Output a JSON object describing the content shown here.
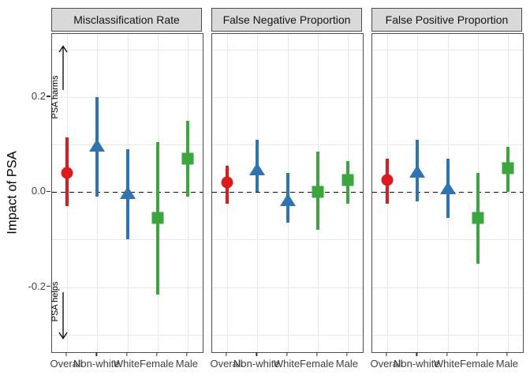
{
  "chart_data": {
    "type": "pointrange",
    "ylabel": "Impact of PSA",
    "y_ticks": [
      0.2,
      0.0,
      -0.2
    ],
    "y_tick_labels": [
      "0.2",
      "0.0",
      "-0.2"
    ],
    "ylim": [
      -0.337,
      0.333
    ],
    "gridlines_y": [
      0.3,
      0.2,
      0.1,
      0.0,
      -0.1,
      -0.2,
      -0.3
    ],
    "zero_line": {
      "value": 0.0,
      "style": "dashed",
      "color": "#111111"
    },
    "grid": true,
    "legend_position": "none",
    "categories": [
      "Overall",
      "Non-white",
      "White",
      "Female",
      "Male"
    ],
    "series_style": [
      {
        "category": "Overall",
        "shape": "circle",
        "color": "#e01a1c"
      },
      {
        "category": "Non-white",
        "shape": "triangle",
        "color": "#2e73b3"
      },
      {
        "category": "White",
        "shape": "triangle",
        "color": "#2e73b3"
      },
      {
        "category": "Female",
        "shape": "square",
        "color": "#3aa73c"
      },
      {
        "category": "Male",
        "shape": "square",
        "color": "#3aa73c"
      }
    ],
    "panels": [
      {
        "title": "Misclassification Rate",
        "points": [
          {
            "category": "Overall",
            "estimate": 0.04,
            "lower": -0.03,
            "upper": 0.115
          },
          {
            "category": "Non-white",
            "estimate": 0.1,
            "lower": -0.01,
            "upper": 0.2
          },
          {
            "category": "White",
            "estimate": 0.0,
            "lower": -0.1,
            "upper": 0.09
          },
          {
            "category": "Female",
            "estimate": -0.055,
            "lower": -0.215,
            "upper": 0.105
          },
          {
            "category": "Male",
            "estimate": 0.07,
            "lower": -0.01,
            "upper": 0.15
          }
        ],
        "annotations": [
          {
            "text": "PSA harms",
            "direction": "up",
            "from": 0.215,
            "to": 0.31,
            "label_at": 0.2
          },
          {
            "text": "PSA helps",
            "direction": "down",
            "from": -0.21,
            "to": -0.31,
            "label_at": -0.23
          }
        ]
      },
      {
        "title": "False Negative Proportion",
        "points": [
          {
            "category": "Overall",
            "estimate": 0.02,
            "lower": -0.025,
            "upper": 0.055
          },
          {
            "category": "Non-white",
            "estimate": 0.05,
            "lower": 0.0,
            "upper": 0.11
          },
          {
            "category": "White",
            "estimate": -0.015,
            "lower": -0.065,
            "upper": 0.04
          },
          {
            "category": "Female",
            "estimate": 0.0,
            "lower": -0.08,
            "upper": 0.085
          },
          {
            "category": "Male",
            "estimate": 0.025,
            "lower": -0.025,
            "upper": 0.065
          }
        ],
        "annotations": []
      },
      {
        "title": "False Positive Proportion",
        "points": [
          {
            "category": "Overall",
            "estimate": 0.025,
            "lower": -0.025,
            "upper": 0.07
          },
          {
            "category": "Non-white",
            "estimate": 0.045,
            "lower": -0.02,
            "upper": 0.11
          },
          {
            "category": "White",
            "estimate": 0.01,
            "lower": -0.055,
            "upper": 0.07
          },
          {
            "category": "Female",
            "estimate": -0.055,
            "lower": -0.15,
            "upper": 0.04
          },
          {
            "category": "Male",
            "estimate": 0.05,
            "lower": 0.0,
            "upper": 0.095
          }
        ],
        "annotations": []
      }
    ],
    "colors": {
      "strip_bg": "#d9d9d9",
      "panel_border": "#4d4d4d",
      "grid": "#e8e8e8",
      "tick_text": "#404040",
      "annotation": "#000000"
    }
  }
}
